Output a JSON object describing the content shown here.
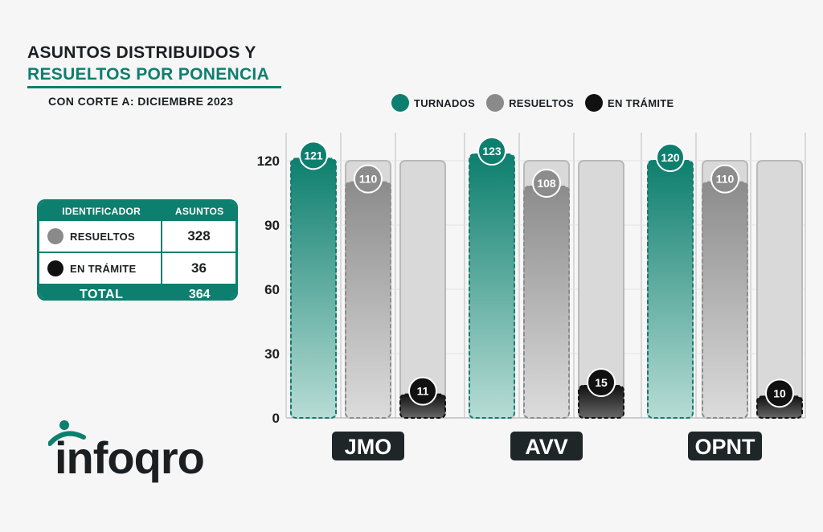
{
  "title": {
    "line1": "ASUNTOS DISTRIBUIDOS Y",
    "line2": "RESUELTOS POR PONENCIA"
  },
  "subtitle": "CON CORTE A: DICIEMBRE 2023",
  "legend": [
    {
      "label": "TURNADOS",
      "color": "#0d7f6e"
    },
    {
      "label": "RESUELTOS",
      "color": "#8a8a8a"
    },
    {
      "label": "EN TRÁMITE",
      "color": "#111111"
    }
  ],
  "summary_table": {
    "headers": [
      "IDENTIFICADOR",
      "ASUNTOS"
    ],
    "rows": [
      {
        "label": "RESUELTOS",
        "value": "328",
        "dot_color": "#8a8a8a"
      },
      {
        "label": "EN TRÁMITE",
        "value": "36",
        "dot_color": "#111111"
      }
    ],
    "total_label": "TOTAL",
    "total_value": "364"
  },
  "logo": {
    "text": "infoqro",
    "icon": "infoqro-logo-icon"
  },
  "chart_data": {
    "type": "bar",
    "categories": [
      "JMO",
      "AVV",
      "OPNT"
    ],
    "series": [
      {
        "name": "TURNADOS",
        "values": [
          121,
          123,
          120
        ],
        "color": "#0d7f6e"
      },
      {
        "name": "RESUELTOS",
        "values": [
          110,
          108,
          110
        ],
        "color": "#8a8a8a"
      },
      {
        "name": "EN TRÁMITE",
        "values": [
          11,
          15,
          10
        ],
        "color": "#111111"
      }
    ],
    "y_ticks": [
      0,
      30,
      60,
      90,
      120
    ],
    "ylim": [
      0,
      120
    ],
    "grid": true,
    "legend_position": "top"
  }
}
